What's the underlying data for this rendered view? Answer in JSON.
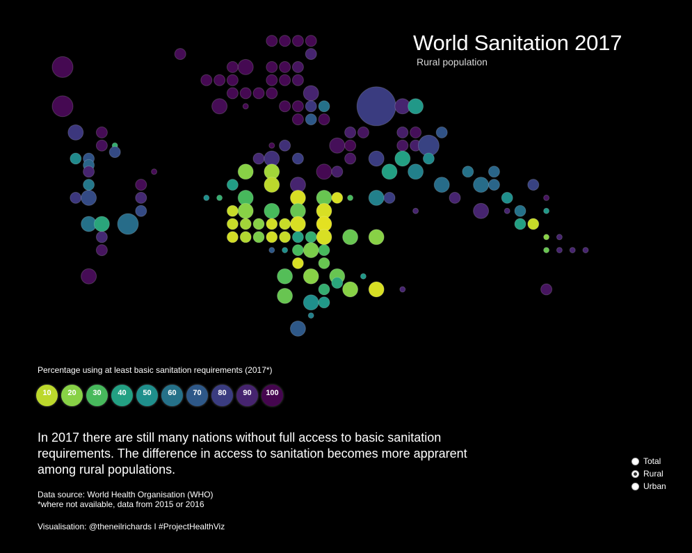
{
  "header": {
    "title": "World Sanitation 2017",
    "subtitle": "Rural population"
  },
  "legend": {
    "title": "Percentage using at least basic sanitation requirements (2017*)",
    "items": [
      {
        "label": "10",
        "color": "#bcd82c"
      },
      {
        "label": "20",
        "color": "#88d146"
      },
      {
        "label": "30",
        "color": "#47b95c"
      },
      {
        "label": "40",
        "color": "#23a083"
      },
      {
        "label": "50",
        "color": "#1f8f8c"
      },
      {
        "label": "60",
        "color": "#257189"
      },
      {
        "label": "70",
        "color": "#2e5888"
      },
      {
        "label": "80",
        "color": "#3a3c80"
      },
      {
        "label": "90",
        "color": "#46246f"
      },
      {
        "label": "100",
        "color": "#45064f"
      }
    ]
  },
  "description": "In 2017 there are still many nations without full access to basic sanitation requirements. The difference in access to sanitation becomes more apprarent among rural populations.",
  "source_line1": "Data source: World Health Organisation (WHO)",
  "source_line2": "*where not available, data from 2015 or 2016",
  "credit": "Visualisation: @theneilrichards I #ProjectHealthViz",
  "filter": {
    "options": [
      {
        "label": "Total",
        "selected": false
      },
      {
        "label": "Rural",
        "selected": true
      },
      {
        "label": "Urban",
        "selected": false
      }
    ]
  },
  "chart_data": {
    "type": "scatter",
    "title": "World Sanitation 2017",
    "subtitle": "Rural population",
    "xlabel": "",
    "ylabel": "",
    "encoding": "Tile-grid cartogram of countries: v = percentage of rural population using at least basic sanitation (2017*), s = relative bubble size; col/row are the tile grid units.",
    "color_scale": {
      "domain": [
        0,
        10,
        20,
        30,
        40,
        50,
        60,
        70,
        80,
        90,
        100
      ],
      "colors": [
        "#f4e51c",
        "#bcd82c",
        "#88d146",
        "#47b95c",
        "#23a083",
        "#1f8f8c",
        "#257189",
        "#2e5888",
        "#3a3c80",
        "#46246f",
        "#45064f"
      ]
    },
    "points": [
      {
        "col": 4,
        "row": 4,
        "v": 99,
        "s": 3
      },
      {
        "col": 4,
        "row": 7,
        "v": 99,
        "s": 3
      },
      {
        "col": 5,
        "row": 9,
        "v": 82,
        "s": 2
      },
      {
        "col": 7,
        "row": 9,
        "v": 98,
        "s": 1
      },
      {
        "col": 7,
        "row": 10,
        "v": 97,
        "s": 1
      },
      {
        "col": 8,
        "row": 10,
        "v": 35,
        "s": 0
      },
      {
        "col": 8,
        "row": 10.5,
        "v": 75,
        "s": 1
      },
      {
        "col": 5,
        "row": 11,
        "v": 52,
        "s": 1
      },
      {
        "col": 6,
        "row": 11,
        "v": 72,
        "s": 1
      },
      {
        "col": 6,
        "row": 11.5,
        "v": 65,
        "s": 1
      },
      {
        "col": 6,
        "row": 12,
        "v": 90,
        "s": 1
      },
      {
        "col": 6,
        "row": 13,
        "v": 58,
        "s": 1
      },
      {
        "col": 5,
        "row": 14,
        "v": 82,
        "s": 1
      },
      {
        "col": 6,
        "row": 14,
        "v": 75,
        "s": 2
      },
      {
        "col": 6,
        "row": 16,
        "v": 60,
        "s": 2
      },
      {
        "col": 7,
        "row": 16,
        "v": 38,
        "s": 2
      },
      {
        "col": 9,
        "row": 16,
        "v": 62,
        "s": 3
      },
      {
        "col": 7,
        "row": 17,
        "v": 88,
        "s": 1
      },
      {
        "col": 7,
        "row": 18,
        "v": 95,
        "s": 1
      },
      {
        "col": 6,
        "row": 20,
        "v": 98,
        "s": 2
      },
      {
        "col": 10,
        "row": 13,
        "v": 98,
        "s": 1
      },
      {
        "col": 10,
        "row": 15,
        "v": 75,
        "s": 1
      },
      {
        "col": 10,
        "row": 14,
        "v": 88,
        "s": 1
      },
      {
        "col": 11,
        "row": 12,
        "v": 98,
        "s": 0
      },
      {
        "col": 13,
        "row": 3,
        "v": 98,
        "s": 1
      },
      {
        "col": 15,
        "row": 5,
        "v": 99,
        "s": 1
      },
      {
        "col": 16,
        "row": 5,
        "v": 99,
        "s": 1
      },
      {
        "col": 17,
        "row": 4,
        "v": 99,
        "s": 1
      },
      {
        "col": 17,
        "row": 5,
        "v": 99,
        "s": 1
      },
      {
        "col": 18,
        "row": 4,
        "v": 99,
        "s": 2
      },
      {
        "col": 17,
        "row": 6,
        "v": 99,
        "s": 1
      },
      {
        "col": 18,
        "row": 6,
        "v": 99,
        "s": 1
      },
      {
        "col": 19,
        "row": 6,
        "v": 99,
        "s": 1
      },
      {
        "col": 20,
        "row": 6,
        "v": 99,
        "s": 1
      },
      {
        "col": 16,
        "row": 7,
        "v": 98,
        "s": 2
      },
      {
        "col": 18,
        "row": 7,
        "v": 99,
        "s": 0
      },
      {
        "col": 20,
        "row": 2,
        "v": 99,
        "s": 1
      },
      {
        "col": 21,
        "row": 2,
        "v": 99,
        "s": 1
      },
      {
        "col": 22,
        "row": 2,
        "v": 99,
        "s": 1
      },
      {
        "col": 23,
        "row": 2,
        "v": 99,
        "s": 1
      },
      {
        "col": 23,
        "row": 3,
        "v": 90,
        "s": 1
      },
      {
        "col": 20,
        "row": 4,
        "v": 99,
        "s": 1
      },
      {
        "col": 21,
        "row": 4,
        "v": 99,
        "s": 1
      },
      {
        "col": 22,
        "row": 4,
        "v": 95,
        "s": 1
      },
      {
        "col": 20,
        "row": 5,
        "v": 99,
        "s": 1
      },
      {
        "col": 21,
        "row": 5,
        "v": 99,
        "s": 1
      },
      {
        "col": 22,
        "row": 5,
        "v": 97,
        "s": 1
      },
      {
        "col": 23,
        "row": 6,
        "v": 90,
        "s": 2
      },
      {
        "col": 21,
        "row": 7,
        "v": 99,
        "s": 1
      },
      {
        "col": 22,
        "row": 7,
        "v": 99,
        "s": 1
      },
      {
        "col": 23,
        "row": 7,
        "v": 82,
        "s": 1
      },
      {
        "col": 24,
        "row": 7,
        "v": 60,
        "s": 1
      },
      {
        "col": 22,
        "row": 8,
        "v": 99,
        "s": 1
      },
      {
        "col": 23,
        "row": 8,
        "v": 70,
        "s": 1
      },
      {
        "col": 24,
        "row": 8,
        "v": 99,
        "s": 1
      },
      {
        "col": 21,
        "row": 10,
        "v": 85,
        "s": 1
      },
      {
        "col": 20,
        "row": 10,
        "v": 99,
        "s": 0
      },
      {
        "col": 19,
        "row": 11,
        "v": 88,
        "s": 1
      },
      {
        "col": 20,
        "row": 11,
        "v": 85,
        "s": 2
      },
      {
        "col": 22,
        "row": 11,
        "v": 80,
        "s": 1
      },
      {
        "col": 24,
        "row": 12,
        "v": 99,
        "s": 2
      },
      {
        "col": 25,
        "row": 10,
        "v": 97,
        "s": 2
      },
      {
        "col": 26,
        "row": 9,
        "v": 92,
        "s": 1
      },
      {
        "col": 26,
        "row": 10,
        "v": 99,
        "s": 1
      },
      {
        "col": 27,
        "row": 9,
        "v": 95,
        "s": 1
      },
      {
        "col": 28,
        "row": 7,
        "v": 80,
        "s": 4
      },
      {
        "col": 30,
        "row": 7,
        "v": 90,
        "s": 2
      },
      {
        "col": 31,
        "row": 7,
        "v": 45,
        "s": 2
      },
      {
        "col": 30,
        "row": 9,
        "v": 92,
        "s": 1
      },
      {
        "col": 31,
        "row": 9,
        "v": 97,
        "s": 1
      },
      {
        "col": 30,
        "row": 10,
        "v": 95,
        "s": 1
      },
      {
        "col": 31,
        "row": 10,
        "v": 92,
        "s": 1
      },
      {
        "col": 33,
        "row": 9,
        "v": 72,
        "s": 1
      },
      {
        "col": 32,
        "row": 10,
        "v": 78,
        "s": 3
      },
      {
        "col": 28,
        "row": 11,
        "v": 80,
        "s": 2
      },
      {
        "col": 30,
        "row": 11,
        "v": 40,
        "s": 2
      },
      {
        "col": 26,
        "row": 11,
        "v": 95,
        "s": 1
      },
      {
        "col": 25,
        "row": 12,
        "v": 92,
        "s": 1
      },
      {
        "col": 18,
        "row": 12,
        "v": 20,
        "s": 2
      },
      {
        "col": 20,
        "row": 12,
        "v": 15,
        "s": 2
      },
      {
        "col": 22,
        "row": 13,
        "v": 90,
        "s": 2
      },
      {
        "col": 16,
        "row": 14,
        "v": 35,
        "s": 0
      },
      {
        "col": 17,
        "row": 13,
        "v": 42,
        "s": 1
      },
      {
        "col": 18,
        "row": 14,
        "v": 30,
        "s": 2
      },
      {
        "col": 20,
        "row": 13,
        "v": 10,
        "s": 2
      },
      {
        "col": 22,
        "row": 14,
        "v": 5,
        "s": 2
      },
      {
        "col": 24,
        "row": 14,
        "v": 25,
        "s": 2
      },
      {
        "col": 25,
        "row": 14,
        "v": 5,
        "s": 1
      },
      {
        "col": 26,
        "row": 14,
        "v": 30,
        "s": 0
      },
      {
        "col": 15,
        "row": 14,
        "v": 50,
        "s": 0
      },
      {
        "col": 17,
        "row": 15,
        "v": 8,
        "s": 1
      },
      {
        "col": 18,
        "row": 15,
        "v": 20,
        "s": 2
      },
      {
        "col": 20,
        "row": 15,
        "v": 30,
        "s": 2
      },
      {
        "col": 22,
        "row": 15,
        "v": 25,
        "s": 2
      },
      {
        "col": 24,
        "row": 15,
        "v": 5,
        "s": 2
      },
      {
        "col": 17,
        "row": 16,
        "v": 8,
        "s": 1
      },
      {
        "col": 18,
        "row": 16,
        "v": 15,
        "s": 1
      },
      {
        "col": 19,
        "row": 16,
        "v": 20,
        "s": 1
      },
      {
        "col": 20,
        "row": 16,
        "v": 6,
        "s": 1
      },
      {
        "col": 21,
        "row": 16,
        "v": 8,
        "s": 1
      },
      {
        "col": 22,
        "row": 16,
        "v": 5,
        "s": 2
      },
      {
        "col": 24,
        "row": 16,
        "v": 3,
        "s": 2
      },
      {
        "col": 17,
        "row": 17,
        "v": 6,
        "s": 1
      },
      {
        "col": 18,
        "row": 17,
        "v": 12,
        "s": 1
      },
      {
        "col": 19,
        "row": 17,
        "v": 22,
        "s": 1
      },
      {
        "col": 20,
        "row": 17,
        "v": 6,
        "s": 1
      },
      {
        "col": 21,
        "row": 17,
        "v": 8,
        "s": 1
      },
      {
        "col": 22,
        "row": 17,
        "v": 40,
        "s": 1
      },
      {
        "col": 23,
        "row": 17,
        "v": 35,
        "s": 1
      },
      {
        "col": 24,
        "row": 17,
        "v": 5,
        "s": 2
      },
      {
        "col": 26,
        "row": 17,
        "v": 25,
        "s": 2
      },
      {
        "col": 28,
        "row": 17,
        "v": 20,
        "s": 2
      },
      {
        "col": 20,
        "row": 18,
        "v": 70,
        "s": 0
      },
      {
        "col": 21,
        "row": 18,
        "v": 50,
        "s": 0
      },
      {
        "col": 22,
        "row": 18,
        "v": 30,
        "s": 1
      },
      {
        "col": 23,
        "row": 18,
        "v": 22,
        "s": 2
      },
      {
        "col": 24,
        "row": 18,
        "v": 30,
        "s": 1
      },
      {
        "col": 22,
        "row": 19,
        "v": 5,
        "s": 1
      },
      {
        "col": 24,
        "row": 19,
        "v": 25,
        "s": 1
      },
      {
        "col": 25,
        "row": 20,
        "v": 25,
        "s": 2
      },
      {
        "col": 21,
        "row": 20,
        "v": 28,
        "s": 2
      },
      {
        "col": 23,
        "row": 20,
        "v": 20,
        "s": 2
      },
      {
        "col": 24,
        "row": 21,
        "v": 35,
        "s": 1
      },
      {
        "col": 25,
        "row": 20.5,
        "v": 38,
        "s": 1
      },
      {
        "col": 26,
        "row": 21,
        "v": 20,
        "s": 2
      },
      {
        "col": 27,
        "row": 20,
        "v": 45,
        "s": 0
      },
      {
        "col": 28,
        "row": 21,
        "v": 5,
        "s": 2
      },
      {
        "col": 21,
        "row": 21.5,
        "v": 25,
        "s": 2
      },
      {
        "col": 23,
        "row": 22,
        "v": 50,
        "s": 2
      },
      {
        "col": 24,
        "row": 22,
        "v": 45,
        "s": 1
      },
      {
        "col": 23,
        "row": 23,
        "v": 55,
        "s": 0
      },
      {
        "col": 22,
        "row": 24,
        "v": 70,
        "s": 2
      },
      {
        "col": 30,
        "row": 21,
        "v": 90,
        "s": 0
      },
      {
        "col": 28,
        "row": 14,
        "v": 55,
        "s": 2
      },
      {
        "col": 29,
        "row": 14,
        "v": 80,
        "s": 1
      },
      {
        "col": 31,
        "row": 15,
        "v": 90,
        "s": 0
      },
      {
        "col": 29,
        "row": 12,
        "v": 40,
        "s": 2
      },
      {
        "col": 31,
        "row": 12,
        "v": 55,
        "s": 2
      },
      {
        "col": 32,
        "row": 11,
        "v": 52,
        "s": 1
      },
      {
        "col": 33,
        "row": 13,
        "v": 62,
        "s": 2
      },
      {
        "col": 34,
        "row": 14,
        "v": 90,
        "s": 1
      },
      {
        "col": 35,
        "row": 12,
        "v": 60,
        "s": 1
      },
      {
        "col": 36,
        "row": 13,
        "v": 62,
        "s": 2
      },
      {
        "col": 37,
        "row": 12,
        "v": 65,
        "s": 1
      },
      {
        "col": 37,
        "row": 13,
        "v": 65,
        "s": 1
      },
      {
        "col": 36,
        "row": 15,
        "v": 90,
        "s": 2
      },
      {
        "col": 38,
        "row": 14,
        "v": 50,
        "s": 1
      },
      {
        "col": 39,
        "row": 15,
        "v": 60,
        "s": 1
      },
      {
        "col": 38,
        "row": 15,
        "v": 90,
        "s": 0
      },
      {
        "col": 39,
        "row": 16,
        "v": 40,
        "s": 1
      },
      {
        "col": 40,
        "row": 16,
        "v": 8,
        "s": 1
      },
      {
        "col": 40,
        "row": 13,
        "v": 78,
        "s": 1
      },
      {
        "col": 41,
        "row": 14,
        "v": 95,
        "s": 0
      },
      {
        "col": 41,
        "row": 15,
        "v": 45,
        "s": 0
      },
      {
        "col": 41,
        "row": 17,
        "v": 20,
        "s": 0
      },
      {
        "col": 42,
        "row": 17,
        "v": 90,
        "s": 0
      },
      {
        "col": 41,
        "row": 18,
        "v": 25,
        "s": 0
      },
      {
        "col": 42,
        "row": 18,
        "v": 90,
        "s": 0
      },
      {
        "col": 43,
        "row": 18,
        "v": 90,
        "s": 0
      },
      {
        "col": 44,
        "row": 18,
        "v": 90,
        "s": 0
      },
      {
        "col": 41,
        "row": 21,
        "v": 95,
        "s": 1
      }
    ]
  }
}
